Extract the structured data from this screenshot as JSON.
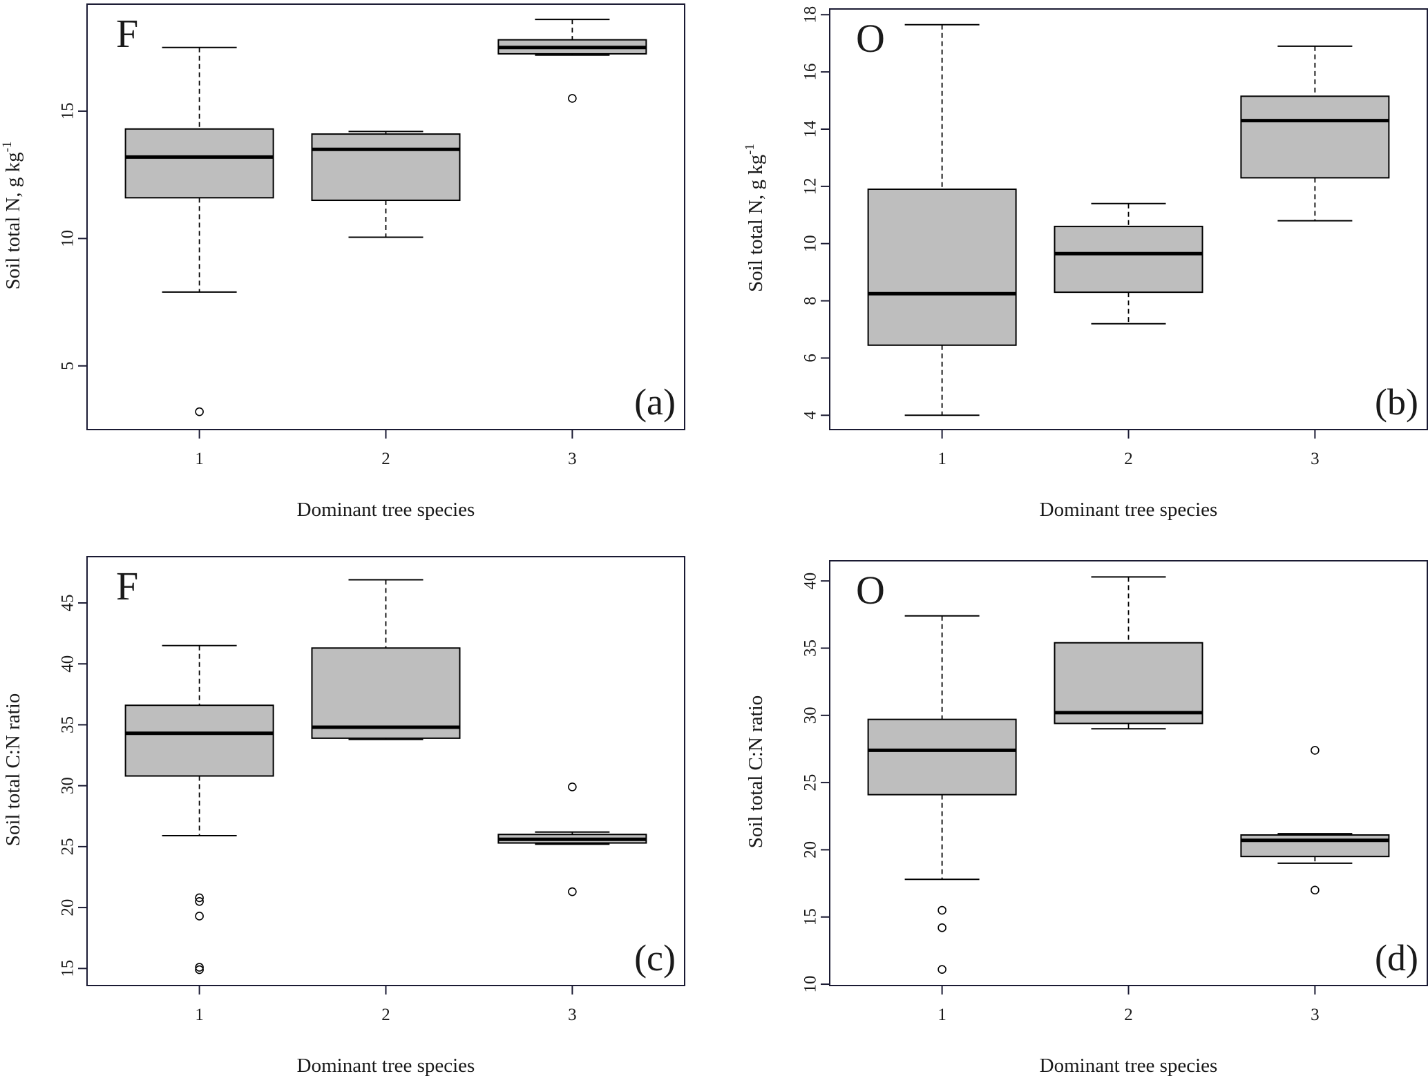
{
  "colors": {
    "box_fill": "#bebebe",
    "stroke": "#000000",
    "frame": "#1a1a33"
  },
  "chart_data": [
    {
      "type": "boxplot",
      "panel_label": "F",
      "tag": "(a)",
      "xlabel": "Dominant tree species",
      "ylabel_main": "Soil total N, g kg",
      "ylabel_sup": "-1",
      "categories": [
        "1",
        "2",
        "3"
      ],
      "ylim": [
        2.5,
        19.2
      ],
      "yticks": [
        5,
        10,
        15
      ],
      "boxes": [
        {
          "category": "1",
          "whisker_low": 7.9,
          "q1": 11.6,
          "median": 13.2,
          "q3": 14.3,
          "whisker_high": 17.5,
          "outliers": [
            3.2
          ]
        },
        {
          "category": "2",
          "whisker_low": 10.05,
          "q1": 11.5,
          "median": 13.5,
          "q3": 14.1,
          "whisker_high": 14.2,
          "outliers": []
        },
        {
          "category": "3",
          "whisker_low": 17.2,
          "q1": 17.25,
          "median": 17.5,
          "q3": 17.8,
          "whisker_high": 18.6,
          "outliers": [
            15.5
          ]
        }
      ]
    },
    {
      "type": "boxplot",
      "panel_label": "O",
      "tag": "(b)",
      "xlabel": "Dominant tree species",
      "ylabel_main": "Soil total N, g kg",
      "ylabel_sup": "-1",
      "categories": [
        "1",
        "2",
        "3"
      ],
      "ylim": [
        3.5,
        18.2
      ],
      "yticks": [
        4,
        6,
        8,
        10,
        12,
        14,
        16,
        18
      ],
      "boxes": [
        {
          "category": "1",
          "whisker_low": 4.0,
          "q1": 6.45,
          "median": 8.25,
          "q3": 11.9,
          "whisker_high": 17.65,
          "outliers": []
        },
        {
          "category": "2",
          "whisker_low": 7.2,
          "q1": 8.3,
          "median": 9.65,
          "q3": 10.6,
          "whisker_high": 11.4,
          "outliers": []
        },
        {
          "category": "3",
          "whisker_low": 10.8,
          "q1": 12.3,
          "median": 14.3,
          "q3": 15.15,
          "whisker_high": 16.9,
          "outliers": []
        }
      ]
    },
    {
      "type": "boxplot",
      "panel_label": "F",
      "tag": "(c)",
      "xlabel": "Dominant tree species",
      "ylabel_main": "Soil total C:N ratio",
      "ylabel_sup": "",
      "categories": [
        "1",
        "2",
        "3"
      ],
      "ylim": [
        13.6,
        48.8
      ],
      "yticks": [
        15,
        20,
        25,
        30,
        35,
        40,
        45
      ],
      "boxes": [
        {
          "category": "1",
          "whisker_low": 25.9,
          "q1": 30.8,
          "median": 34.3,
          "q3": 36.6,
          "whisker_high": 41.5,
          "outliers": [
            14.9,
            15.1,
            19.3,
            20.5,
            20.8
          ]
        },
        {
          "category": "2",
          "whisker_low": 33.8,
          "q1": 33.9,
          "median": 34.8,
          "q3": 41.3,
          "whisker_high": 46.9,
          "outliers": []
        },
        {
          "category": "3",
          "whisker_low": 25.2,
          "q1": 25.3,
          "median": 25.6,
          "q3": 26.0,
          "whisker_high": 26.2,
          "outliers": [
            29.9,
            21.3
          ]
        }
      ]
    },
    {
      "type": "boxplot",
      "panel_label": "O",
      "tag": "(d)",
      "xlabel": "Dominant tree species",
      "ylabel_main": "Soil total C:N ratio",
      "ylabel_sup": "",
      "categories": [
        "1",
        "2",
        "3"
      ],
      "ylim": [
        9.9,
        41.5
      ],
      "yticks": [
        10,
        15,
        20,
        25,
        30,
        35,
        40
      ],
      "boxes": [
        {
          "category": "1",
          "whisker_low": 17.8,
          "q1": 24.1,
          "median": 27.4,
          "q3": 29.7,
          "whisker_high": 37.4,
          "outliers": [
            11.1,
            14.2,
            15.5
          ]
        },
        {
          "category": "2",
          "whisker_low": 29.0,
          "q1": 29.4,
          "median": 30.2,
          "q3": 35.4,
          "whisker_high": 40.3,
          "outliers": []
        },
        {
          "category": "3",
          "whisker_low": 19.0,
          "q1": 19.5,
          "median": 20.7,
          "q3": 21.1,
          "whisker_high": 21.2,
          "outliers": [
            27.4,
            17.0
          ]
        }
      ]
    }
  ]
}
